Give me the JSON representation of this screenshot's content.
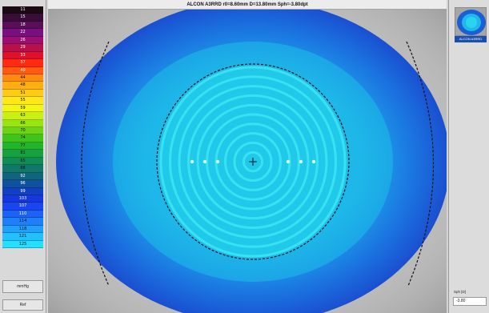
{
  "title": "ALCON A3RRD r0=8.60mm D=13.80mm Sph=-3.80dpt",
  "scale": {
    "items": [
      {
        "label": "11",
        "color": "#1a0a14"
      },
      {
        "label": "15",
        "color": "#3a0c38"
      },
      {
        "label": "18",
        "color": "#5a0e5a"
      },
      {
        "label": "22",
        "color": "#7a1080"
      },
      {
        "label": "26",
        "color": "#9a1070"
      },
      {
        "label": "29",
        "color": "#b8104a"
      },
      {
        "label": "33",
        "color": "#e0102a"
      },
      {
        "label": "37",
        "color": "#ff2a10"
      },
      {
        "label": "40",
        "color": "#ff5a10"
      },
      {
        "label": "44",
        "color": "#ff8a10"
      },
      {
        "label": "48",
        "color": "#ffae12"
      },
      {
        "label": "51",
        "color": "#ffcc14"
      },
      {
        "label": "55",
        "color": "#ffe816"
      },
      {
        "label": "59",
        "color": "#f2f614"
      },
      {
        "label": "63",
        "color": "#c8f014"
      },
      {
        "label": "66",
        "color": "#9ae414"
      },
      {
        "label": "70",
        "color": "#6cd414"
      },
      {
        "label": "74",
        "color": "#3ec41a"
      },
      {
        "label": "77",
        "color": "#22b42a"
      },
      {
        "label": "81",
        "color": "#16a040"
      },
      {
        "label": "85",
        "color": "#128c56"
      },
      {
        "label": "88",
        "color": "#10786a"
      },
      {
        "label": "92",
        "color": "#10647e"
      },
      {
        "label": "96",
        "color": "#1050a0"
      },
      {
        "label": "99",
        "color": "#1040c4"
      },
      {
        "label": "103",
        "color": "#1636de"
      },
      {
        "label": "107",
        "color": "#1a46f0"
      },
      {
        "label": "110",
        "color": "#1c62f6"
      },
      {
        "label": "114",
        "color": "#1e80f8"
      },
      {
        "label": "118",
        "color": "#20a0fa"
      },
      {
        "label": "121",
        "color": "#22c0fc"
      },
      {
        "label": "125",
        "color": "#24e0fe"
      }
    ],
    "unit_button": "mmHg",
    "ref_button": "Ref"
  },
  "map": {
    "colors": {
      "outer": "#1a4fd0",
      "mid": "#1e86ee",
      "inner": "#20c8ea",
      "ring": "#3ee6f2",
      "background": "#b8b8b8",
      "dash": "#1a1a1a"
    }
  },
  "right_panel": {
    "thumbnail_label": "ALCON A3RRD",
    "sph_label": "Sph [D]",
    "sph_value": "-3.80"
  }
}
